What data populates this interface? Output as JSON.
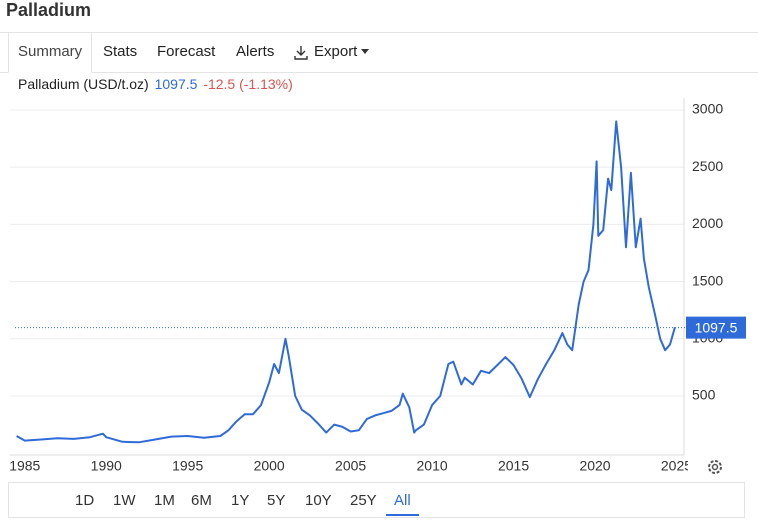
{
  "header": {
    "title": "Palladium"
  },
  "tabs": [
    "Summary",
    "Stats",
    "Forecast",
    "Alerts",
    "Export"
  ],
  "ranges": [
    "1D",
    "1W",
    "1M",
    "6M",
    "1Y",
    "5Y",
    "10Y",
    "25Y",
    "All"
  ],
  "chart_data": {
    "type": "line",
    "x": [
      1984.5,
      1985,
      1986,
      1987,
      1988,
      1989,
      1989.8,
      1990,
      1991,
      1992,
      1993,
      1994,
      1995,
      1996,
      1997,
      1997.5,
      1998,
      1998.5,
      1999,
      1999.5,
      2000,
      2000.3,
      2000.6,
      2001,
      2001.2,
      2001.6,
      2002,
      2002.5,
      2003,
      2003.5,
      2004,
      2004.5,
      2005,
      2005.5,
      2006,
      2006.5,
      2007,
      2007.5,
      2008,
      2008.2,
      2008.6,
      2008.9,
      2009,
      2009.5,
      2010,
      2010.5,
      2011,
      2011.3,
      2011.8,
      2012,
      2012.5,
      2013,
      2013.5,
      2014,
      2014.5,
      2015,
      2015.5,
      2016,
      2016.5,
      2017,
      2017.5,
      2018,
      2018.3,
      2018.6,
      2019,
      2019.3,
      2019.6,
      2019.9,
      2020.1,
      2020.2,
      2020.5,
      2020.8,
      2021,
      2021.3,
      2021.6,
      2021.9,
      2022.2,
      2022.5,
      2022.8,
      2023,
      2023.3,
      2023.7,
      2024,
      2024.3,
      2024.6,
      2024.9
    ],
    "series": [
      {
        "name": "Palladium (USD/t.oz)",
        "color": "#2f6bd8",
        "values": [
          150,
          110,
          120,
          130,
          125,
          140,
          170,
          140,
          100,
          95,
          120,
          145,
          150,
          135,
          150,
          200,
          280,
          340,
          340,
          420,
          620,
          780,
          700,
          1000,
          850,
          500,
          380,
          330,
          260,
          180,
          250,
          230,
          190,
          200,
          300,
          330,
          350,
          370,
          420,
          520,
          400,
          180,
          200,
          250,
          420,
          500,
          780,
          800,
          600,
          660,
          600,
          720,
          700,
          770,
          840,
          770,
          650,
          490,
          650,
          780,
          900,
          1050,
          950,
          900,
          1300,
          1500,
          1600,
          2000,
          2550,
          1900,
          1950,
          2400,
          2300,
          2900,
          2500,
          1800,
          2450,
          1800,
          2050,
          1700,
          1450,
          1200,
          1000,
          900,
          950,
          1100
        ]
      }
    ],
    "last_value": 1097.5,
    "change": "-12.5 (-1.13%)",
    "xlim": [
      1984.4,
      2025.4
    ],
    "xticks": [
      1985,
      1990,
      1995,
      2000,
      2005,
      2010,
      2015,
      2020,
      2025
    ],
    "ylim": [
      0,
      3100
    ],
    "yticks": [
      500,
      1000,
      1500,
      2000,
      2500,
      3000
    ],
    "grid": true
  }
}
